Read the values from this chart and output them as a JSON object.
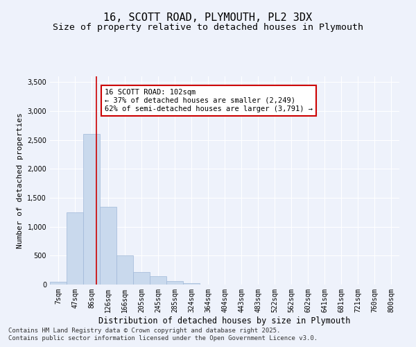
{
  "title_line1": "16, SCOTT ROAD, PLYMOUTH, PL2 3DX",
  "title_line2": "Size of property relative to detached houses in Plymouth",
  "xlabel": "Distribution of detached houses by size in Plymouth",
  "ylabel": "Number of detached properties",
  "categories": [
    "7sqm",
    "47sqm",
    "86sqm",
    "126sqm",
    "166sqm",
    "205sqm",
    "245sqm",
    "285sqm",
    "324sqm",
    "364sqm",
    "404sqm",
    "443sqm",
    "483sqm",
    "522sqm",
    "562sqm",
    "602sqm",
    "641sqm",
    "681sqm",
    "721sqm",
    "760sqm",
    "800sqm"
  ],
  "values": [
    50,
    1250,
    2600,
    1350,
    500,
    220,
    150,
    60,
    20,
    5,
    2,
    1,
    0,
    0,
    0,
    0,
    0,
    0,
    0,
    0,
    0
  ],
  "bar_color": "#c9d9ed",
  "bar_edge_color": "#a0b8d8",
  "vline_index": 2.3,
  "vline_color": "#cc0000",
  "annotation_text": "16 SCOTT ROAD: 102sqm\n← 37% of detached houses are smaller (2,249)\n62% of semi-detached houses are larger (3,791) →",
  "annotation_box_color": "#ffffff",
  "annotation_box_edge": "#cc0000",
  "ylim": [
    0,
    3600
  ],
  "yticks": [
    0,
    500,
    1000,
    1500,
    2000,
    2500,
    3000,
    3500
  ],
  "background_color": "#eef2fb",
  "grid_color": "#ffffff",
  "footer_line1": "Contains HM Land Registry data © Crown copyright and database right 2025.",
  "footer_line2": "Contains public sector information licensed under the Open Government Licence v3.0.",
  "title_fontsize": 11,
  "subtitle_fontsize": 9.5,
  "tick_fontsize": 7,
  "ylabel_fontsize": 8,
  "xlabel_fontsize": 8.5,
  "annotation_fontsize": 7.5,
  "footer_fontsize": 6.5
}
